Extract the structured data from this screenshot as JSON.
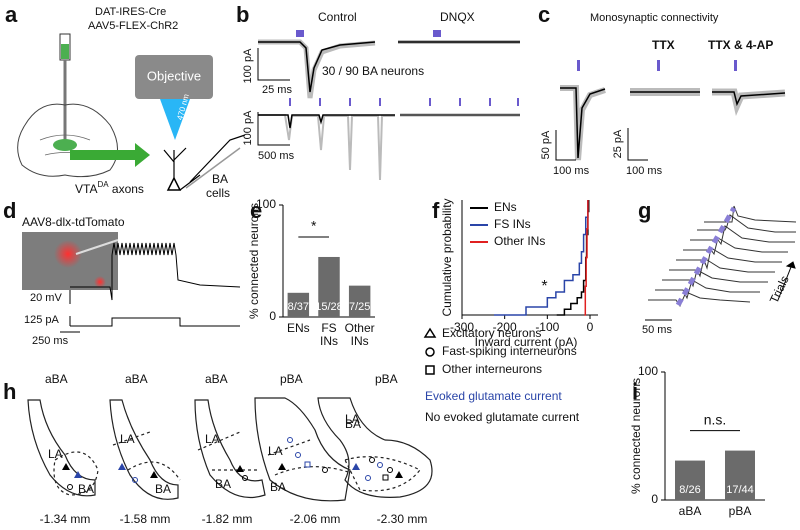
{
  "panel_labels": [
    "a",
    "b",
    "c",
    "d",
    "e",
    "f",
    "g",
    "h",
    "i"
  ],
  "panel_a": {
    "line1": "DAT-IRES-Cre",
    "line2": "AAV5-FLEX-ChR2",
    "objective": "Objective",
    "wavelength": "470 nm",
    "axons_main": "VTA",
    "axons_sup": "DA",
    "axons_rest": " axons",
    "cells_1": "BA",
    "cells_2": "cells"
  },
  "panel_b": {
    "control": "Control",
    "dnqx": "DNQX",
    "scale_top_y": "100 pA",
    "scale_top_x": "25 ms",
    "count": "30 / 90 BA neurons",
    "scale_bottom_y": "100 pA",
    "scale_bottom_x": "500 ms"
  },
  "panel_c": {
    "title": "Monosynaptic connectivity",
    "ttx": "TTX",
    "ttx4ap": "TTX & 4-AP",
    "scale1_y": "50 pA",
    "scale1_x": "100 ms",
    "scale2_y": "25 pA",
    "scale2_x": "100 ms"
  },
  "panel_d": {
    "title": "AAV8-dlx-tdTomato",
    "scale_mv": "20 mV",
    "scale_pa": "125 pA",
    "scale_ms": "250 ms"
  },
  "panel_g": {
    "scale_ms": "50 ms",
    "trials": "Trials"
  },
  "panel_h": {
    "sections": [
      {
        "region": "aBA",
        "la": "LA",
        "ba": "BA",
        "level": "-1.34 mm"
      },
      {
        "region": "aBA",
        "la": "LA",
        "ba": "BA",
        "level": "-1.58 mm"
      },
      {
        "region": "aBA",
        "la": "LA",
        "ba": "BA",
        "level": "-1.82 mm"
      },
      {
        "region": "pBA",
        "la": "LA",
        "ba": "BA",
        "level": "-2.06 mm"
      },
      {
        "region": "pBA",
        "la": "LA",
        "ba": "BA",
        "level": "-2.30 mm"
      }
    ],
    "legend": [
      "Excitatory neurons",
      "Fast-spiking interneurons",
      "Other interneurons"
    ],
    "evoked": "Evoked glutamate current",
    "no_evoked": "No evoked glutamate current"
  },
  "chart_data": [
    {
      "type": "bar",
      "ylabel": "% connected neurons",
      "categories": [
        "ENs",
        "FS INs",
        "Other INs"
      ],
      "values": [
        21.6,
        53.6,
        28
      ],
      "value_labels": [
        "8/37",
        "15/28",
        "7/25"
      ],
      "color": "#6b6b6b",
      "ylim": [
        0,
        100
      ],
      "yticks": [
        0,
        100
      ],
      "annotation": "*"
    },
    {
      "type": "line",
      "xlabel": "Inward current (pA)",
      "ylabel": "Cumulative probability",
      "xlim": [
        -300,
        0
      ],
      "xticks": [
        -300,
        -200,
        -100,
        0
      ],
      "ylim": [
        0,
        1
      ],
      "legend": "upper left",
      "annotation": "*",
      "series": [
        {
          "name": "ENs",
          "color": "#000000",
          "x": [
            -78,
            -60,
            -45,
            -30,
            -20,
            -15,
            -10,
            -8,
            -5,
            -3
          ],
          "values": [
            0,
            0.05,
            0.1,
            0.15,
            0.2,
            0.3,
            0.5,
            0.7,
            0.9,
            1
          ]
        },
        {
          "name": "FS INs",
          "color": "#2a45a8",
          "x": [
            -225,
            -150,
            -100,
            -80,
            -60,
            -40,
            -25,
            -20,
            -15,
            -10,
            -5
          ],
          "values": [
            0,
            0.07,
            0.15,
            0.2,
            0.3,
            0.35,
            0.45,
            0.55,
            0.7,
            0.85,
            1
          ]
        },
        {
          "name": "Other INs",
          "color": "#e02020",
          "x": [
            -13,
            -11,
            -9,
            -7,
            -5
          ],
          "values": [
            0,
            0.25,
            0.5,
            0.75,
            1
          ]
        }
      ]
    },
    {
      "type": "bar",
      "ylabel": "% connected neurons",
      "categories": [
        "aBA",
        "pBA"
      ],
      "values": [
        30.8,
        38.6
      ],
      "value_labels": [
        "8/26",
        "17/44"
      ],
      "color": "#6b6b6b",
      "ylim": [
        0,
        100
      ],
      "yticks": [
        0,
        100
      ],
      "annotation": "n.s."
    }
  ]
}
